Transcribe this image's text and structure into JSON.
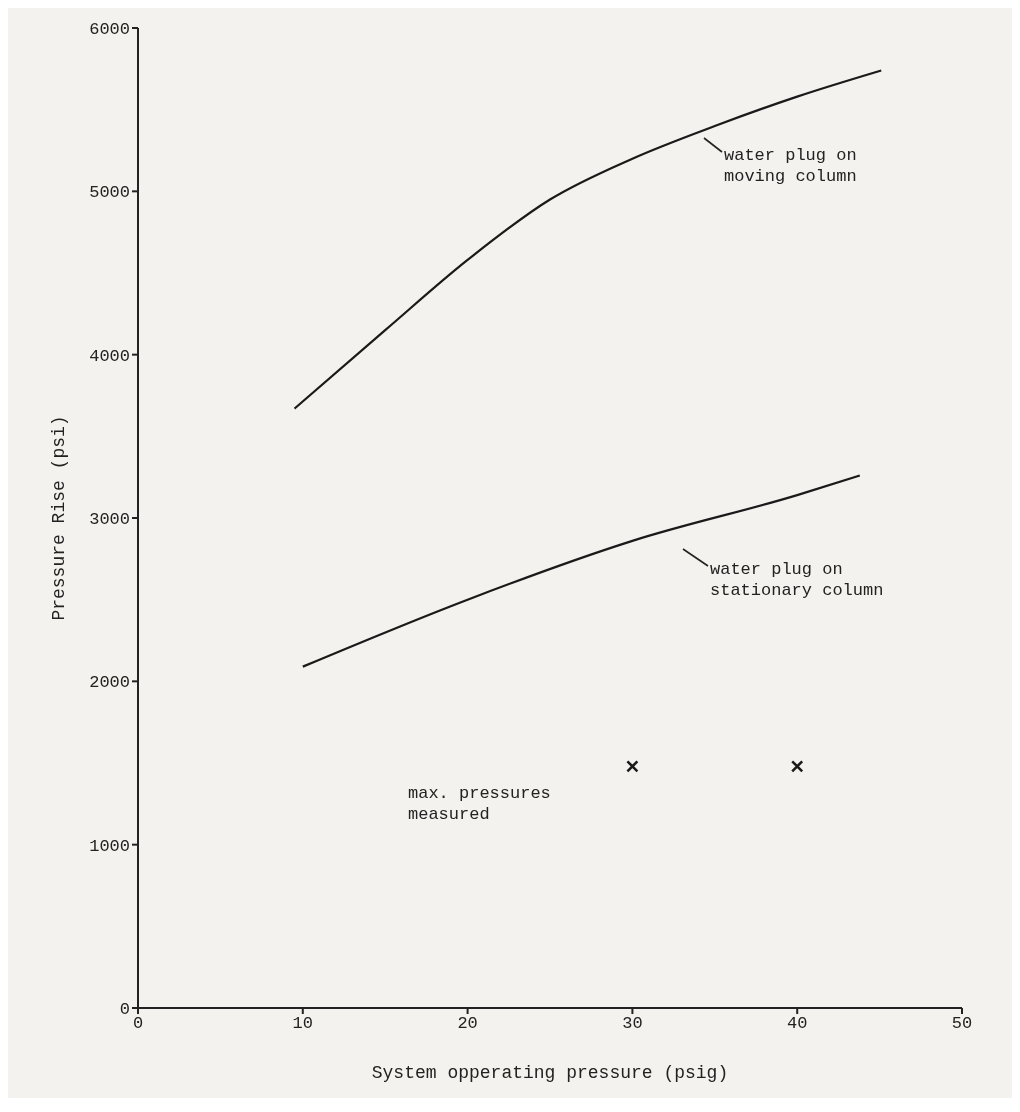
{
  "chart_data": {
    "type": "line",
    "xlabel": "System opperating pressure (psig)",
    "ylabel": "Pressure Rise (psi)",
    "xlim": [
      0,
      50
    ],
    "xticks": [
      0,
      10,
      20,
      30,
      40,
      50
    ],
    "ylim": [
      0,
      6000
    ],
    "yticks": [
      0,
      1000,
      2000,
      3000,
      4000,
      5000,
      6000
    ],
    "marker": "none",
    "line_style": "solid",
    "series": [
      {
        "color": "#1a1a1a",
        "x": [
          9.5,
          15,
          20,
          25,
          30,
          35,
          40,
          45.1
        ],
        "values": [
          3670,
          4150,
          4580,
          4950,
          5200,
          5400,
          5580,
          5740
        ]
      },
      {
        "color": "#1a1a1a",
        "x": [
          10,
          20,
          30,
          40,
          43.8
        ],
        "values": [
          2090,
          2500,
          2860,
          3140,
          3260
        ]
      },
      {
        "type": "scatter",
        "marker": "cross",
        "color": "#1a1a1a",
        "x": [
          30,
          40
        ],
        "values": [
          1480,
          1480
        ]
      }
    ],
    "annotations": [
      "water plug on moving column",
      "water plug on stationary column",
      "max. pressures measured"
    ]
  }
}
